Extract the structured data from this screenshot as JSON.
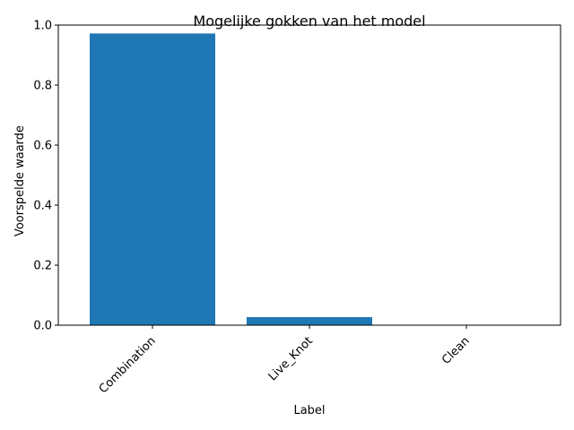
{
  "chart_data": {
    "type": "bar",
    "title": "Mogelijke gokken van het model",
    "xlabel": "Label",
    "ylabel": "Voorspelde waarde",
    "categories": [
      "Combination",
      "Live_Knot",
      "Clean"
    ],
    "values": [
      0.972,
      0.027,
      0.001
    ],
    "ylim": [
      0,
      1.0
    ],
    "yticks": [
      "0.0",
      "0.2",
      "0.4",
      "0.6",
      "0.8",
      "1.0"
    ],
    "xtick_rotation_deg": 45,
    "grid": false,
    "legend": "none",
    "bar_color": "#1f77b4"
  }
}
